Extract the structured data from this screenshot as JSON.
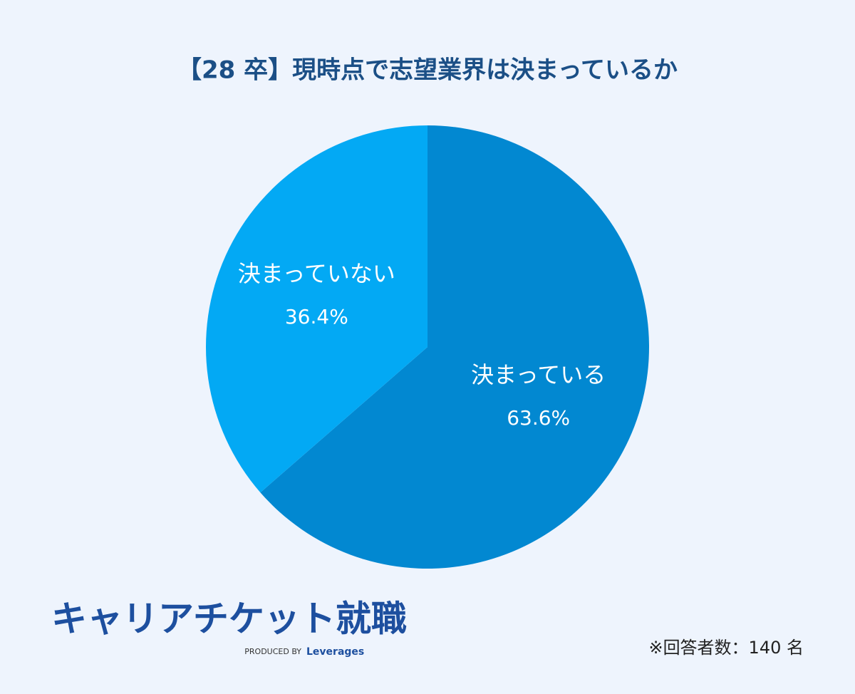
{
  "chart_data": {
    "type": "pie",
    "title": "【28 卒】現時点で志望業界は決まっているか",
    "categories": [
      "決まっている",
      "決まっていない"
    ],
    "values": [
      63.6,
      36.4
    ],
    "value_labels": [
      "63.6%",
      "36.4%"
    ],
    "colors": [
      "#0288d1",
      "#03a9f4"
    ]
  },
  "branding": {
    "logo": "キャリアチケット就職",
    "produced_by": "PRODUCED BY",
    "company": "Leverages"
  },
  "note": "※回答者数：140 名"
}
